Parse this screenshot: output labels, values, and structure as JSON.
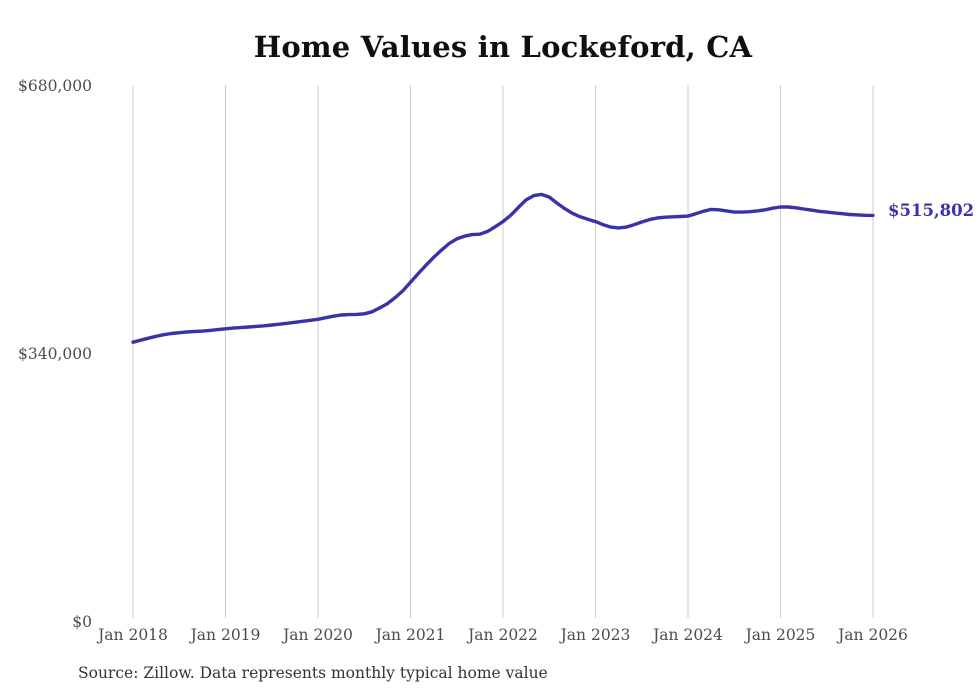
{
  "title": "Home Values in Lockeford, CA",
  "source_note": "Source: Zillow. Data represents monthly typical home value",
  "end_label": "$515,802",
  "colors": {
    "line": "#3a33a8",
    "grid": "#cccccc",
    "tick_text": "#4d4d4d",
    "title_text": "#0f0f0f",
    "source_text": "#333333",
    "background": "#ffffff"
  },
  "chart_data": {
    "type": "line",
    "title": "Home Values in Lockeford, CA",
    "xlabel": "",
    "ylabel": "",
    "ylim": [
      0,
      680000
    ],
    "grid": "vertical-only",
    "legend": "none",
    "x_ticks": [
      "Jan 2018",
      "Jan 2019",
      "Jan 2020",
      "Jan 2021",
      "Jan 2022",
      "Jan 2023",
      "Jan 2024",
      "Jan 2025",
      "Jan 2026"
    ],
    "y_ticks": [
      {
        "label": "$680,000",
        "value": 680000
      },
      {
        "label": "$340,000",
        "value": 340000
      },
      {
        "label": "$0",
        "value": 0
      }
    ],
    "series": [
      {
        "name": "Monthly typical home value",
        "x_start": "Jan 2018",
        "x_end": "Jan 2026",
        "interval": "monthly",
        "values": [
          355000,
          357500,
          360000,
          362500,
          364500,
          366000,
          367000,
          368000,
          368500,
          369000,
          370000,
          371000,
          372000,
          372800,
          373500,
          374200,
          375000,
          375800,
          376800,
          377800,
          379000,
          380200,
          381500,
          382800,
          384000,
          386000,
          388000,
          389500,
          390000,
          390300,
          391000,
          393500,
          398500,
          404000,
          411500,
          420000,
          431000,
          442000,
          452500,
          462500,
          471500,
          480000,
          486000,
          489500,
          491500,
          492000,
          495500,
          501500,
          508000,
          516000,
          526000,
          535500,
          541000,
          542500,
          539000,
          531500,
          524500,
          518500,
          514000,
          511000,
          508000,
          504000,
          501000,
          500000,
          501000,
          504000,
          507500,
          510500,
          512500,
          513500,
          514000,
          514500,
          515000,
          518000,
          521000,
          523500,
          523000,
          521500,
          520000,
          520000,
          520500,
          521500,
          523000,
          525000,
          526500,
          526500,
          525500,
          524000,
          522500,
          521000,
          520000,
          519000,
          518000,
          517000,
          516500,
          516000,
          515802
        ]
      }
    ],
    "end_value": 515802,
    "end_value_label": "$515,802"
  }
}
